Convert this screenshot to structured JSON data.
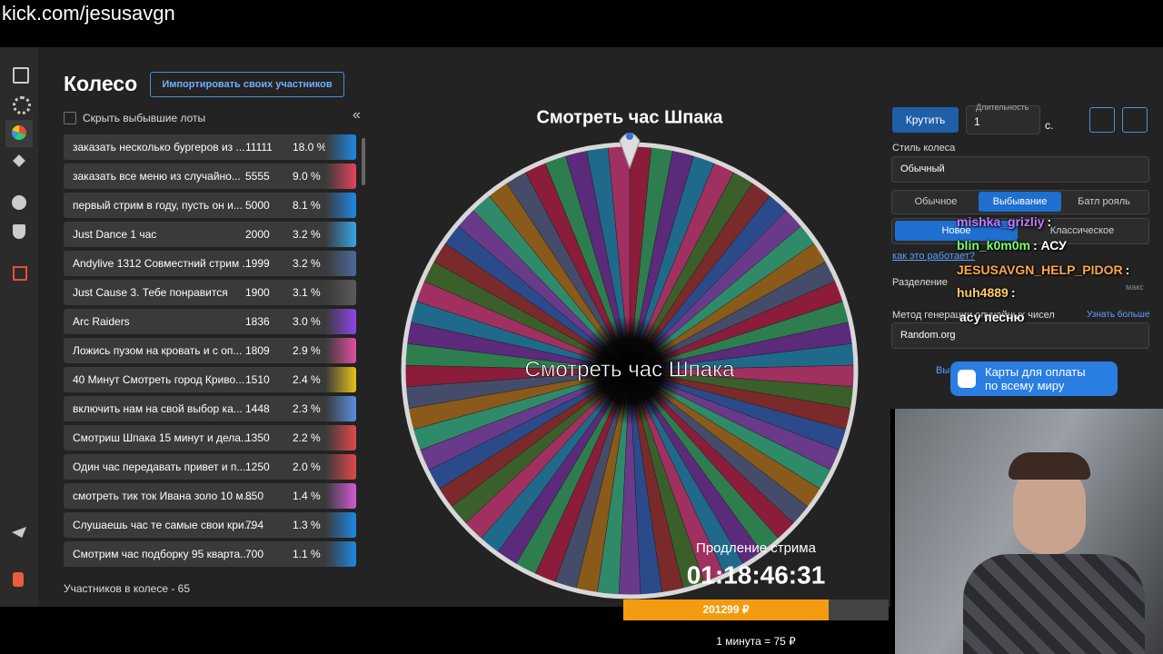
{
  "url": "kick.com/jesusavgn",
  "header": {
    "title": "Колесо",
    "import_button": "Импортировать своих участников"
  },
  "hide_label": "Скрыть выбывшие лоты",
  "lots": [
    {
      "name": "заказать несколько бургеров из ...",
      "amount": 11111,
      "percent": "18.0 %"
    },
    {
      "name": "заказать все меню из случайно...",
      "amount": 5555,
      "percent": "9.0 %"
    },
    {
      "name": "первый стрим в году, пусть он и...",
      "amount": 5000,
      "percent": "8.1 %"
    },
    {
      "name": "Just Dance 1 час",
      "amount": 2000,
      "percent": "3.2 %"
    },
    {
      "name": "Andylive 1312 Совместний стрим ...",
      "amount": 1999,
      "percent": "3.2 %"
    },
    {
      "name": "Just Cause 3. Тебе понравится",
      "amount": 1900,
      "percent": "3.1 %"
    },
    {
      "name": "Arc Raiders",
      "amount": 1836,
      "percent": "3.0 %"
    },
    {
      "name": "Ложись пузом на кровать и с оп...",
      "amount": 1809,
      "percent": "2.9 %"
    },
    {
      "name": "40 Минут Смотреть город Криво...",
      "amount": 1510,
      "percent": "2.4 %"
    },
    {
      "name": "включить нам на свой выбор ка...",
      "amount": 1448,
      "percent": "2.3 %"
    },
    {
      "name": "Смотриш Шпака 15 минут и дела...",
      "amount": 1350,
      "percent": "2.2 %"
    },
    {
      "name": "Один час передавать привет и п...",
      "amount": 1250,
      "percent": "2.0 %"
    },
    {
      "name": "смотреть тик ток Ивана золо 10 м...",
      "amount": 850,
      "percent": "1.4 %"
    },
    {
      "name": "Слушаешь час те самые свои кри...",
      "amount": 794,
      "percent": "1.3 %"
    },
    {
      "name": "Смотрим час подборку 95 кварта...",
      "amount": 700,
      "percent": "1.1 %"
    }
  ],
  "participants": "Участников в колесе - 65",
  "wheel": {
    "title": "Смотреть час Шпака",
    "center_label": "Смотреть час Шпака"
  },
  "timer": {
    "label": "Продление стрима",
    "time": "01:18:46:31",
    "total": "201299 ₽",
    "rate": "1 минута = 75 ₽"
  },
  "panel": {
    "spin": "Крутить",
    "duration_label": "Длительность",
    "duration_value": "1",
    "duration_unit": "с.",
    "style_label": "Стиль колеса",
    "style_value": "Обычный",
    "modes": [
      "Обычное",
      "Выбывание",
      "Батл рояль"
    ],
    "submodes": [
      "Новое",
      "Классическое"
    ],
    "how_link": "как это работает?",
    "split_label": "Разделение",
    "max_label": "макс",
    "method_label": "Метод генерации случайных чисел",
    "learn_more": "Узнать больше",
    "method_value": "Random.org",
    "partial": "Вы",
    "banner": [
      "Карты для оплаты",
      "по всему миру"
    ]
  },
  "chat": [
    {
      "user": "mishka_grizliy",
      "text": ":"
    },
    {
      "user": "blin_k0m0m",
      "text": ": АСУ"
    },
    {
      "user": "JESUSAVGN_HELP_PIDOR",
      "text": ":"
    },
    {
      "user": "huh4889",
      "text": ":"
    },
    {
      "user": "",
      "text": "асу песню"
    }
  ]
}
